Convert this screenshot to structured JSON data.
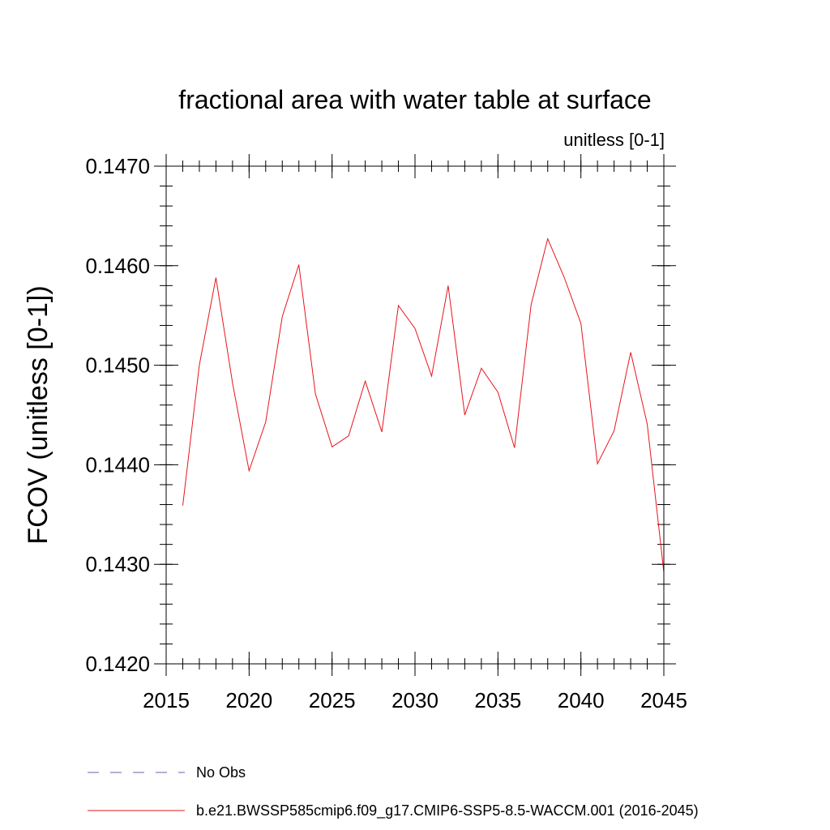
{
  "chart_data": {
    "type": "line",
    "title": "fractional area with water table at surface",
    "units_label": "unitless [0-1]",
    "ylabel": "FCOV  (unitless [0-1])",
    "xlabel": "",
    "xlim": [
      2015,
      2045
    ],
    "ylim": [
      0.142,
      0.147
    ],
    "x_ticks": [
      2015,
      2020,
      2025,
      2030,
      2035,
      2040,
      2045
    ],
    "x_tick_labels": [
      "2015",
      "2020",
      "2025",
      "2030",
      "2035",
      "2040",
      "2045"
    ],
    "y_ticks": [
      0.142,
      0.143,
      0.144,
      0.145,
      0.146,
      0.147
    ],
    "y_tick_labels": [
      "0.1420",
      "0.1430",
      "0.1440",
      "0.1450",
      "0.1460",
      "0.1470"
    ],
    "y_minor_step": 0.0002,
    "x_minor_step": 1,
    "series": [
      {
        "name": "b.e21.BWSSP585cmip6.f09_g17.CMIP6-SSP5-8.5-WACCM.001 (2016-2045)",
        "color": "#e8141c",
        "x": [
          2016,
          2017,
          2018,
          2019,
          2020,
          2021,
          2022,
          2023,
          2024,
          2025,
          2026,
          2027,
          2028,
          2029,
          2030,
          2031,
          2032,
          2033,
          2034,
          2035,
          2036,
          2037,
          2038,
          2039,
          2040,
          2041,
          2042,
          2043,
          2044,
          2045
        ],
        "values": [
          0.14359,
          0.145,
          0.14588,
          0.14482,
          0.14394,
          0.14443,
          0.14549,
          0.14601,
          0.14471,
          0.14418,
          0.14429,
          0.14484,
          0.14433,
          0.1456,
          0.14537,
          0.14489,
          0.1458,
          0.1445,
          0.14497,
          0.14473,
          0.14417,
          0.14561,
          0.14627,
          0.14588,
          0.14542,
          0.14401,
          0.14434,
          0.14513,
          0.14441,
          0.14292
        ]
      }
    ],
    "legend": [
      {
        "label": "No Obs",
        "style": "dashed",
        "color": "#6b5fb0"
      },
      {
        "label": "b.e21.BWSSP585cmip6.f09_g17.CMIP6-SSP5-8.5-WACCM.001 (2016-2045)",
        "style": "solid",
        "color": "#e8141c"
      }
    ]
  }
}
